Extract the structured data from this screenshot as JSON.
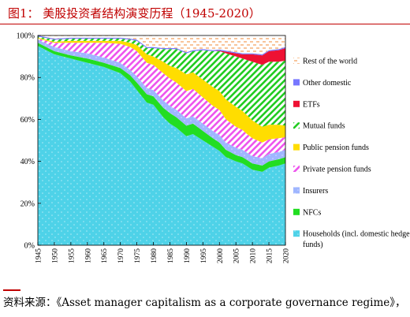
{
  "header": {
    "title": "图1：  美股投资者结构演变历程（1945-2020）"
  },
  "footer": {
    "source": "资料来源：《Asset manager capitalism as a corporate governance regime》，"
  },
  "chart_data": {
    "type": "area",
    "stacked": true,
    "title": "",
    "xlabel": "",
    "ylabel": "",
    "x": [
      1945,
      1950,
      1955,
      1960,
      1965,
      1970,
      1973,
      1975,
      1978,
      1980,
      1983,
      1985,
      1987,
      1990,
      1992,
      1995,
      1998,
      2000,
      2002,
      2005,
      2007,
      2008,
      2010,
      2013,
      2015,
      2018,
      2020
    ],
    "xticks": [
      1945,
      1950,
      1955,
      1960,
      1965,
      1970,
      1975,
      1980,
      1985,
      1990,
      1995,
      2000,
      2005,
      2010,
      2015,
      2020
    ],
    "xlim": [
      1945,
      2020
    ],
    "ylim": [
      0,
      100
    ],
    "yticks": [
      0,
      20,
      40,
      60,
      80,
      100
    ],
    "ytick_labels": [
      "0%",
      "20%",
      "40%",
      "60%",
      "80%",
      "100%"
    ],
    "grid": false,
    "legend_position": "right",
    "series": [
      {
        "name": "Households (incl. domestic hedge funds)",
        "color": "#4ed2e8",
        "pattern": "dots",
        "values": [
          95,
          91,
          89,
          87,
          85,
          82,
          78,
          74,
          68,
          67,
          61,
          58,
          56,
          52,
          53,
          50,
          47,
          45,
          42,
          40,
          39,
          38,
          36,
          35,
          37,
          38,
          39
        ]
      },
      {
        "name": "NFCs",
        "color": "#22dd22",
        "pattern": "solid",
        "values": [
          1.5,
          1.5,
          1.5,
          2,
          2,
          2.5,
          3,
          3.5,
          4,
          4,
          4.5,
          5,
          5,
          5,
          5,
          4.5,
          4,
          4,
          3.5,
          3,
          3,
          3,
          3,
          3,
          3,
          3,
          3
        ]
      },
      {
        "name": "Insurers",
        "color": "#9fb6ff",
        "pattern": "dots",
        "values": [
          1.5,
          2,
          2,
          2.5,
          2.5,
          2.5,
          2.5,
          3,
          3,
          3,
          3.5,
          3.5,
          3.5,
          3.5,
          3.5,
          3.5,
          3.5,
          3.5,
          3.5,
          3.5,
          3.5,
          3.5,
          3.5,
          3.5,
          3.5,
          3.5,
          3.5
        ]
      },
      {
        "name": "Private pension funds",
        "color": "#ee55ee",
        "pattern": "diagonal",
        "values": [
          0.5,
          2,
          4,
          5,
          7,
          9,
          11,
          12,
          12,
          12,
          13,
          13,
          13,
          13,
          13,
          12.5,
          12,
          12,
          11,
          10,
          9.5,
          9,
          8.5,
          7.5,
          7,
          6.5,
          6
        ]
      },
      {
        "name": "Public pension funds",
        "color": "#ffdd00",
        "pattern": "solid",
        "values": [
          0.5,
          0.5,
          1,
          1,
          1,
          1.5,
          2,
          3,
          4,
          4,
          5.5,
          6,
          7,
          8,
          8,
          8.5,
          9,
          9,
          9.5,
          9.5,
          9,
          9,
          8.5,
          7.5,
          7,
          6.5,
          5.5
        ]
      },
      {
        "name": "Mutual funds",
        "color": "#22cc22",
        "pattern": "diagonal",
        "values": [
          0.5,
          1,
          1,
          1,
          1,
          1,
          1.5,
          2,
          3,
          4,
          6,
          8,
          9,
          10,
          10,
          14,
          17,
          19,
          22,
          24,
          25,
          26,
          28,
          29.5,
          30,
          30,
          31
        ]
      },
      {
        "name": "ETFs",
        "color": "#ee1133",
        "pattern": "solid",
        "values": [
          0,
          0,
          0,
          0,
          0,
          0,
          0,
          0,
          0,
          0,
          0,
          0,
          0,
          0,
          0,
          0,
          0,
          0.3,
          0.8,
          1.5,
          2,
          2.5,
          3.5,
          4.5,
          5,
          5.5,
          6
        ]
      },
      {
        "name": "Other domestic",
        "color": "#7777ff",
        "pattern": "solid",
        "values": [
          0.5,
          0.5,
          0.5,
          0.5,
          0.5,
          0.5,
          0.5,
          0.5,
          0.5,
          0.5,
          0.5,
          0.5,
          0.5,
          0.5,
          0.5,
          0.5,
          0.5,
          0.5,
          0.5,
          0.5,
          0.5,
          0.5,
          0.5,
          0.5,
          0.5,
          0.5,
          0.5
        ]
      },
      {
        "name": "Rest of the world",
        "color": "#f5a25d",
        "pattern": "dashes",
        "values": [
          0,
          1.5,
          1,
          1,
          1,
          1,
          1,
          1.5,
          5.5,
          5.5,
          5.5,
          5.5,
          5.5,
          7.5,
          6.5,
          6,
          6.5,
          6.5,
          7.7,
          7.5,
          7.5,
          7.5,
          7.5,
          8.5,
          6.5,
          5.5,
          5.5
        ]
      }
    ]
  }
}
